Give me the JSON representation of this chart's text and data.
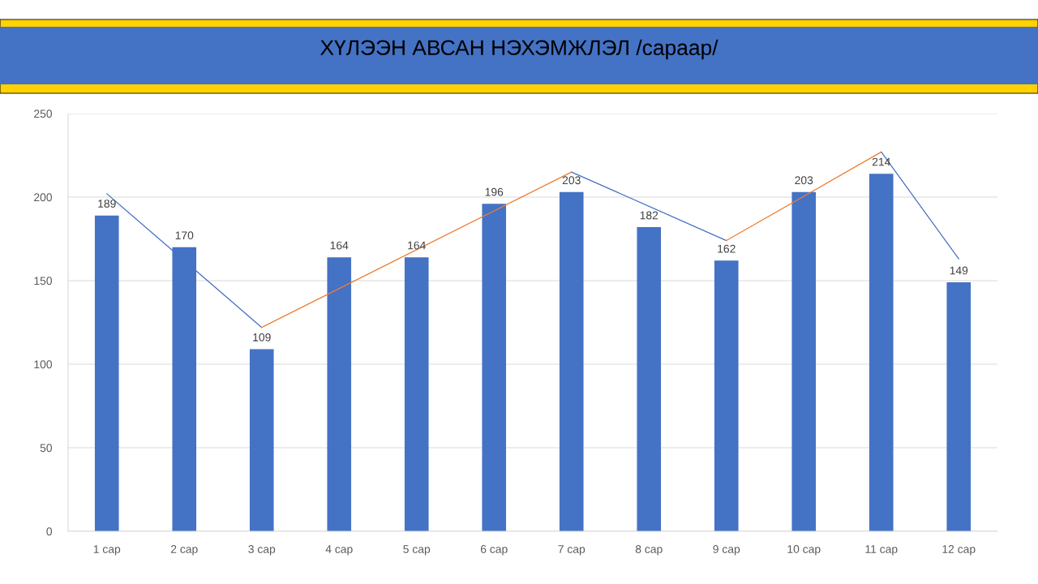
{
  "chart_data": {
    "type": "bar",
    "title": "ХҮЛЭЭН АВСАН НЭХЭМЖЛЭЛ /сараар/",
    "categories": [
      "1 сар",
      "2 сар",
      "3 сар",
      "4 сар",
      "5 сар",
      "6 сар",
      "7 сар",
      "8 сар",
      "9 сар",
      "10 сар",
      "11 сар",
      "12 сар"
    ],
    "series": [
      {
        "color": "#4472c4",
        "values": [
          189,
          170,
          109,
          164,
          164,
          196,
          203,
          182,
          162,
          203,
          214,
          149
        ],
        "value_labels": [
          "189",
          "170",
          "109",
          "164",
          "164",
          "196",
          "203",
          "182",
          "162",
          "203",
          "214",
          "149"
        ]
      },
      {
        "type": "line",
        "color": "#4472c4",
        "x": [
          "1 сар",
          "3 сар"
        ],
        "values": [
          202,
          122
        ]
      },
      {
        "type": "line",
        "color": "#ed7d31",
        "x": [
          "3 сар",
          "7 сар"
        ],
        "values": [
          122,
          215
        ]
      },
      {
        "type": "line",
        "color": "#4472c4",
        "x": [
          "7 сар",
          "9 сар"
        ],
        "values": [
          215,
          174
        ]
      },
      {
        "type": "line",
        "color": "#ed7d31",
        "x": [
          "9 сар",
          "11 сар"
        ],
        "values": [
          174,
          227
        ]
      },
      {
        "type": "line",
        "color": "#4472c4",
        "x": [
          "11 сар",
          "12 сар"
        ],
        "values": [
          227,
          163
        ]
      }
    ],
    "ylim": [
      0,
      250
    ],
    "yticks": [
      0,
      50,
      100,
      150,
      200,
      250
    ],
    "grid": "y"
  }
}
